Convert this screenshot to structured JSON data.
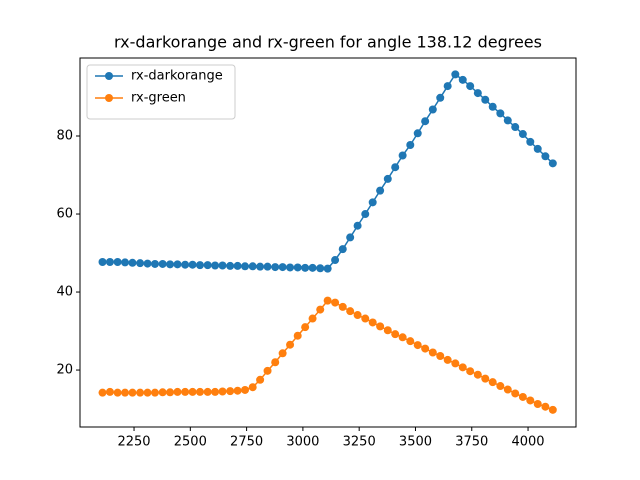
{
  "chart_data": {
    "type": "line",
    "title": "rx-darkorange and rx-green for angle 138.12 degrees",
    "x": [
      2110,
      2143,
      2177,
      2210,
      2243,
      2277,
      2310,
      2343,
      2377,
      2410,
      2443,
      2477,
      2510,
      2543,
      2577,
      2610,
      2643,
      2677,
      2710,
      2743,
      2777,
      2810,
      2843,
      2877,
      2910,
      2943,
      2977,
      3010,
      3043,
      3077,
      3110,
      3143,
      3177,
      3210,
      3243,
      3277,
      3310,
      3343,
      3377,
      3410,
      3443,
      3477,
      3510,
      3543,
      3577,
      3610,
      3643,
      3677,
      3710,
      3743,
      3777,
      3810,
      3843,
      3877,
      3910,
      3943,
      3977,
      4010,
      4043,
      4077,
      4110
    ],
    "series": [
      {
        "name": "rx-darkorange",
        "color": "#1f77b4",
        "values": [
          47.7,
          47.7,
          47.7,
          47.6,
          47.5,
          47.4,
          47.3,
          47.2,
          47.2,
          47.1,
          47.1,
          47.0,
          47.0,
          46.9,
          46.9,
          46.8,
          46.8,
          46.7,
          46.7,
          46.6,
          46.6,
          46.5,
          46.5,
          46.4,
          46.4,
          46.3,
          46.3,
          46.2,
          46.2,
          46.1,
          46.0,
          48.2,
          51,
          54,
          57,
          60,
          63,
          66,
          69,
          72,
          75,
          77.7,
          80.7,
          83.8,
          86.8,
          89.8,
          92.8,
          95.8,
          94.4,
          92.8,
          91,
          89.3,
          87.5,
          85.8,
          84,
          82.3,
          80.5,
          78.5,
          76.7,
          74.8,
          73
        ]
      },
      {
        "name": "rx-green",
        "color": "#ff7f0e",
        "values": [
          14.2,
          14.4,
          14.2,
          14.2,
          14.2,
          14.2,
          14.2,
          14.2,
          14.3,
          14.3,
          14.4,
          14.4,
          14.4,
          14.4,
          14.4,
          14.4,
          14.5,
          14.6,
          14.7,
          14.9,
          15.6,
          17.5,
          19.8,
          22,
          24.3,
          26.5,
          28.8,
          31,
          33.2,
          35.5,
          37.8,
          37.3,
          36.2,
          35.1,
          34.1,
          33.2,
          32.2,
          31.2,
          30.2,
          29.2,
          28.4,
          27.4,
          26.4,
          25.5,
          24.5,
          23.6,
          22.6,
          21.7,
          20.7,
          19.7,
          18.8,
          17.8,
          16.9,
          15.9,
          15,
          14,
          13.1,
          12.2,
          11.3,
          10.6,
          9.8
        ]
      }
    ],
    "xlim": [
      2010,
      4213
    ],
    "ylim": [
      5.4,
      100
    ],
    "xticks": [
      2250,
      2500,
      2750,
      3000,
      3250,
      3500,
      3750,
      4000
    ],
    "yticks": [
      20,
      40,
      60,
      80
    ],
    "legend": "upper left",
    "markers": true
  }
}
